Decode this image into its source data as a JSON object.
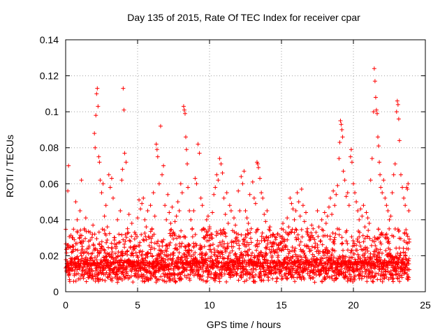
{
  "chart_data": {
    "type": "scatter",
    "title": "Day 135 of 2015, Rate Of TEC Index for receiver cpar",
    "xlabel": "GPS time / hours",
    "ylabel": "ROTI / TECUs",
    "xlim": [
      0,
      25
    ],
    "ylim": [
      0,
      0.14
    ],
    "xticks": [
      0,
      5,
      10,
      15,
      20,
      25
    ],
    "xtick_labels": [
      "0",
      "5",
      "10",
      "15",
      "20",
      "25"
    ],
    "yticks": [
      0,
      0.02,
      0.04,
      0.06,
      0.08,
      0.1,
      0.12,
      0.14
    ],
    "ytick_labels": [
      "0",
      "0.02",
      "0.04",
      "0.06",
      "0.08",
      "0.1",
      "0.12",
      "0.14"
    ],
    "grid": true,
    "marker": "+",
    "color": "#ff0000",
    "series": [
      {
        "name": "ROTI",
        "points": [
          [
            0.1,
            0.017
          ],
          [
            0.15,
            0.056
          ],
          [
            0.2,
            0.07
          ],
          [
            0.3,
            0.025
          ],
          [
            0.4,
            0.012
          ],
          [
            0.5,
            0.03
          ],
          [
            0.6,
            0.009
          ],
          [
            0.7,
            0.05
          ],
          [
            0.8,
            0.04
          ],
          [
            0.9,
            0.018
          ],
          [
            1.0,
            0.045
          ],
          [
            1.1,
            0.062
          ],
          [
            1.2,
            0.022
          ],
          [
            1.3,
            0.035
          ],
          [
            1.4,
            0.041
          ],
          [
            1.5,
            0.014
          ],
          [
            1.6,
            0.028
          ],
          [
            1.7,
            0.033
          ],
          [
            1.8,
            0.019
          ],
          [
            1.9,
            0.037
          ],
          [
            2.0,
            0.088
          ],
          [
            2.05,
            0.08
          ],
          [
            2.1,
            0.098
          ],
          [
            2.15,
            0.11
          ],
          [
            2.2,
            0.113
          ],
          [
            2.25,
            0.103
          ],
          [
            2.3,
            0.075
          ],
          [
            2.35,
            0.072
          ],
          [
            2.4,
            0.062
          ],
          [
            2.5,
            0.055
          ],
          [
            2.6,
            0.06
          ],
          [
            2.7,
            0.042
          ],
          [
            2.8,
            0.048
          ],
          [
            2.9,
            0.036
          ],
          [
            3.0,
            0.065
          ],
          [
            3.1,
            0.058
          ],
          [
            3.2,
            0.063
          ],
          [
            3.3,
            0.052
          ],
          [
            3.4,
            0.03
          ],
          [
            3.5,
            0.025
          ],
          [
            3.6,
            0.04
          ],
          [
            3.7,
            0.032
          ],
          [
            3.8,
            0.045
          ],
          [
            3.9,
            0.062
          ],
          [
            3.95,
            0.068
          ],
          [
            4.0,
            0.113
          ],
          [
            4.05,
            0.101
          ],
          [
            4.1,
            0.077
          ],
          [
            4.2,
            0.072
          ],
          [
            4.3,
            0.035
          ],
          [
            4.4,
            0.043
          ],
          [
            4.5,
            0.028
          ],
          [
            4.6,
            0.038
          ],
          [
            4.7,
            0.02
          ],
          [
            4.8,
            0.033
          ],
          [
            4.9,
            0.025
          ],
          [
            5.0,
            0.041
          ],
          [
            5.1,
            0.051
          ],
          [
            5.2,
            0.046
          ],
          [
            5.3,
            0.049
          ],
          [
            5.4,
            0.052
          ],
          [
            5.5,
            0.04
          ],
          [
            5.6,
            0.036
          ],
          [
            5.7,
            0.045
          ],
          [
            5.8,
            0.03
          ],
          [
            5.9,
            0.048
          ],
          [
            6.0,
            0.035
          ],
          [
            6.1,
            0.055
          ],
          [
            6.2,
            0.042
          ],
          [
            6.3,
            0.082
          ],
          [
            6.35,
            0.079
          ],
          [
            6.4,
            0.075
          ],
          [
            6.5,
            0.06
          ],
          [
            6.6,
            0.092
          ],
          [
            6.7,
            0.065
          ],
          [
            6.8,
            0.07
          ],
          [
            6.9,
            0.048
          ],
          [
            7.0,
            0.04
          ],
          [
            7.1,
            0.054
          ],
          [
            7.2,
            0.044
          ],
          [
            7.3,
            0.038
          ],
          [
            7.4,
            0.047
          ],
          [
            7.5,
            0.033
          ],
          [
            7.6,
            0.039
          ],
          [
            7.7,
            0.042
          ],
          [
            7.8,
            0.05
          ],
          [
            7.9,
            0.045
          ],
          [
            8.0,
            0.06
          ],
          [
            8.1,
            0.055
          ],
          [
            8.2,
            0.103
          ],
          [
            8.25,
            0.101
          ],
          [
            8.3,
            0.099
          ],
          [
            8.35,
            0.086
          ],
          [
            8.4,
            0.079
          ],
          [
            8.45,
            0.071
          ],
          [
            8.5,
            0.058
          ],
          [
            8.6,
            0.045
          ],
          [
            8.7,
            0.04
          ],
          [
            8.8,
            0.035
          ],
          [
            8.9,
            0.045
          ],
          [
            9.0,
            0.063
          ],
          [
            9.1,
            0.06
          ],
          [
            9.2,
            0.082
          ],
          [
            9.3,
            0.077
          ],
          [
            9.4,
            0.052
          ],
          [
            9.5,
            0.048
          ],
          [
            9.6,
            0.035
          ],
          [
            9.7,
            0.03
          ],
          [
            9.8,
            0.04
          ],
          [
            9.9,
            0.042
          ],
          [
            10.0,
            0.036
          ],
          [
            10.1,
            0.032
          ],
          [
            10.2,
            0.044
          ],
          [
            10.3,
            0.054
          ],
          [
            10.4,
            0.058
          ],
          [
            10.5,
            0.065
          ],
          [
            10.6,
            0.062
          ],
          [
            10.7,
            0.074
          ],
          [
            10.8,
            0.071
          ],
          [
            10.9,
            0.066
          ],
          [
            11.0,
            0.052
          ],
          [
            11.1,
            0.043
          ],
          [
            11.2,
            0.055
          ],
          [
            11.3,
            0.038
          ],
          [
            11.4,
            0.048
          ],
          [
            11.5,
            0.045
          ],
          [
            11.6,
            0.034
          ],
          [
            11.7,
            0.041
          ],
          [
            11.8,
            0.037
          ],
          [
            11.9,
            0.03
          ],
          [
            12.0,
            0.056
          ],
          [
            12.1,
            0.045
          ],
          [
            12.2,
            0.064
          ],
          [
            12.3,
            0.06
          ],
          [
            12.4,
            0.067
          ],
          [
            12.5,
            0.045
          ],
          [
            12.6,
            0.041
          ],
          [
            12.7,
            0.038
          ],
          [
            12.8,
            0.054
          ],
          [
            12.9,
            0.035
          ],
          [
            13.0,
            0.061
          ],
          [
            13.1,
            0.052
          ],
          [
            13.2,
            0.049
          ],
          [
            13.3,
            0.072
          ],
          [
            13.35,
            0.071
          ],
          [
            13.4,
            0.069
          ],
          [
            13.5,
            0.063
          ],
          [
            13.6,
            0.055
          ],
          [
            13.7,
            0.052
          ],
          [
            13.8,
            0.043
          ],
          [
            13.9,
            0.039
          ],
          [
            14.0,
            0.045
          ],
          [
            14.1,
            0.03
          ],
          [
            14.2,
            0.036
          ],
          [
            14.3,
            0.025
          ],
          [
            14.4,
            0.032
          ],
          [
            14.5,
            0.027
          ],
          [
            14.6,
            0.029
          ],
          [
            14.7,
            0.022
          ],
          [
            14.8,
            0.026
          ],
          [
            14.9,
            0.031
          ],
          [
            15.0,
            0.035
          ],
          [
            15.1,
            0.038
          ],
          [
            15.2,
            0.028
          ],
          [
            15.3,
            0.033
          ],
          [
            15.4,
            0.041
          ],
          [
            15.5,
            0.036
          ],
          [
            15.6,
            0.052
          ],
          [
            15.7,
            0.049
          ],
          [
            15.8,
            0.046
          ],
          [
            15.9,
            0.04
          ],
          [
            16.0,
            0.045
          ],
          [
            16.1,
            0.055
          ],
          [
            16.2,
            0.05
          ],
          [
            16.3,
            0.042
          ],
          [
            16.4,
            0.057
          ],
          [
            16.5,
            0.048
          ],
          [
            16.6,
            0.039
          ],
          [
            16.7,
            0.044
          ],
          [
            16.8,
            0.035
          ],
          [
            16.9,
            0.031
          ],
          [
            17.0,
            0.03
          ],
          [
            17.1,
            0.037
          ],
          [
            17.2,
            0.035
          ],
          [
            17.3,
            0.029
          ],
          [
            17.4,
            0.033
          ],
          [
            17.5,
            0.045
          ],
          [
            17.6,
            0.036
          ],
          [
            17.7,
            0.028
          ],
          [
            17.8,
            0.04
          ],
          [
            17.9,
            0.031
          ],
          [
            18.0,
            0.044
          ],
          [
            18.1,
            0.038
          ],
          [
            18.2,
            0.042
          ],
          [
            18.3,
            0.047
          ],
          [
            18.4,
            0.052
          ],
          [
            18.5,
            0.043
          ],
          [
            18.6,
            0.056
          ],
          [
            18.7,
            0.048
          ],
          [
            18.8,
            0.054
          ],
          [
            18.9,
            0.059
          ],
          [
            19.0,
            0.074
          ],
          [
            19.05,
            0.083
          ],
          [
            19.1,
            0.095
          ],
          [
            19.15,
            0.093
          ],
          [
            19.2,
            0.09
          ],
          [
            19.25,
            0.086
          ],
          [
            19.3,
            0.067
          ],
          [
            19.4,
            0.062
          ],
          [
            19.5,
            0.053
          ],
          [
            19.6,
            0.055
          ],
          [
            19.7,
            0.048
          ],
          [
            19.8,
            0.075
          ],
          [
            19.85,
            0.079
          ],
          [
            19.9,
            0.072
          ],
          [
            20.0,
            0.06
          ],
          [
            20.1,
            0.055
          ],
          [
            20.2,
            0.05
          ],
          [
            20.3,
            0.045
          ],
          [
            20.4,
            0.04
          ],
          [
            20.5,
            0.046
          ],
          [
            20.6,
            0.042
          ],
          [
            20.7,
            0.048
          ],
          [
            20.8,
            0.036
          ],
          [
            20.9,
            0.044
          ],
          [
            21.0,
            0.041
          ],
          [
            21.1,
            0.038
          ],
          [
            21.2,
            0.062
          ],
          [
            21.3,
            0.074
          ],
          [
            21.4,
            0.1
          ],
          [
            21.45,
            0.124
          ],
          [
            21.5,
            0.117
          ],
          [
            21.55,
            0.108
          ],
          [
            21.6,
            0.101
          ],
          [
            21.65,
            0.099
          ],
          [
            21.7,
            0.086
          ],
          [
            21.75,
            0.081
          ],
          [
            21.8,
            0.072
          ],
          [
            21.85,
            0.065
          ],
          [
            21.9,
            0.058
          ],
          [
            22.0,
            0.055
          ],
          [
            22.1,
            0.062
          ],
          [
            22.2,
            0.052
          ],
          [
            22.3,
            0.048
          ],
          [
            22.4,
            0.045
          ],
          [
            22.5,
            0.04
          ],
          [
            22.6,
            0.042
          ],
          [
            22.7,
            0.055
          ],
          [
            22.8,
            0.065
          ],
          [
            22.9,
            0.071
          ],
          [
            23.0,
            0.1
          ],
          [
            23.05,
            0.106
          ],
          [
            23.1,
            0.104
          ],
          [
            23.15,
            0.096
          ],
          [
            23.2,
            0.084
          ],
          [
            23.3,
            0.065
          ],
          [
            23.4,
            0.058
          ],
          [
            23.5,
            0.052
          ],
          [
            23.6,
            0.048
          ],
          [
            23.7,
            0.058
          ],
          [
            23.75,
            0.057
          ],
          [
            23.8,
            0.06
          ],
          [
            23.85,
            0.045
          ]
        ],
        "dense_band": {
          "x_range": [
            0,
            23.9
          ],
          "typical_range": [
            0.005,
            0.035
          ],
          "median": 0.016
        }
      }
    ]
  }
}
